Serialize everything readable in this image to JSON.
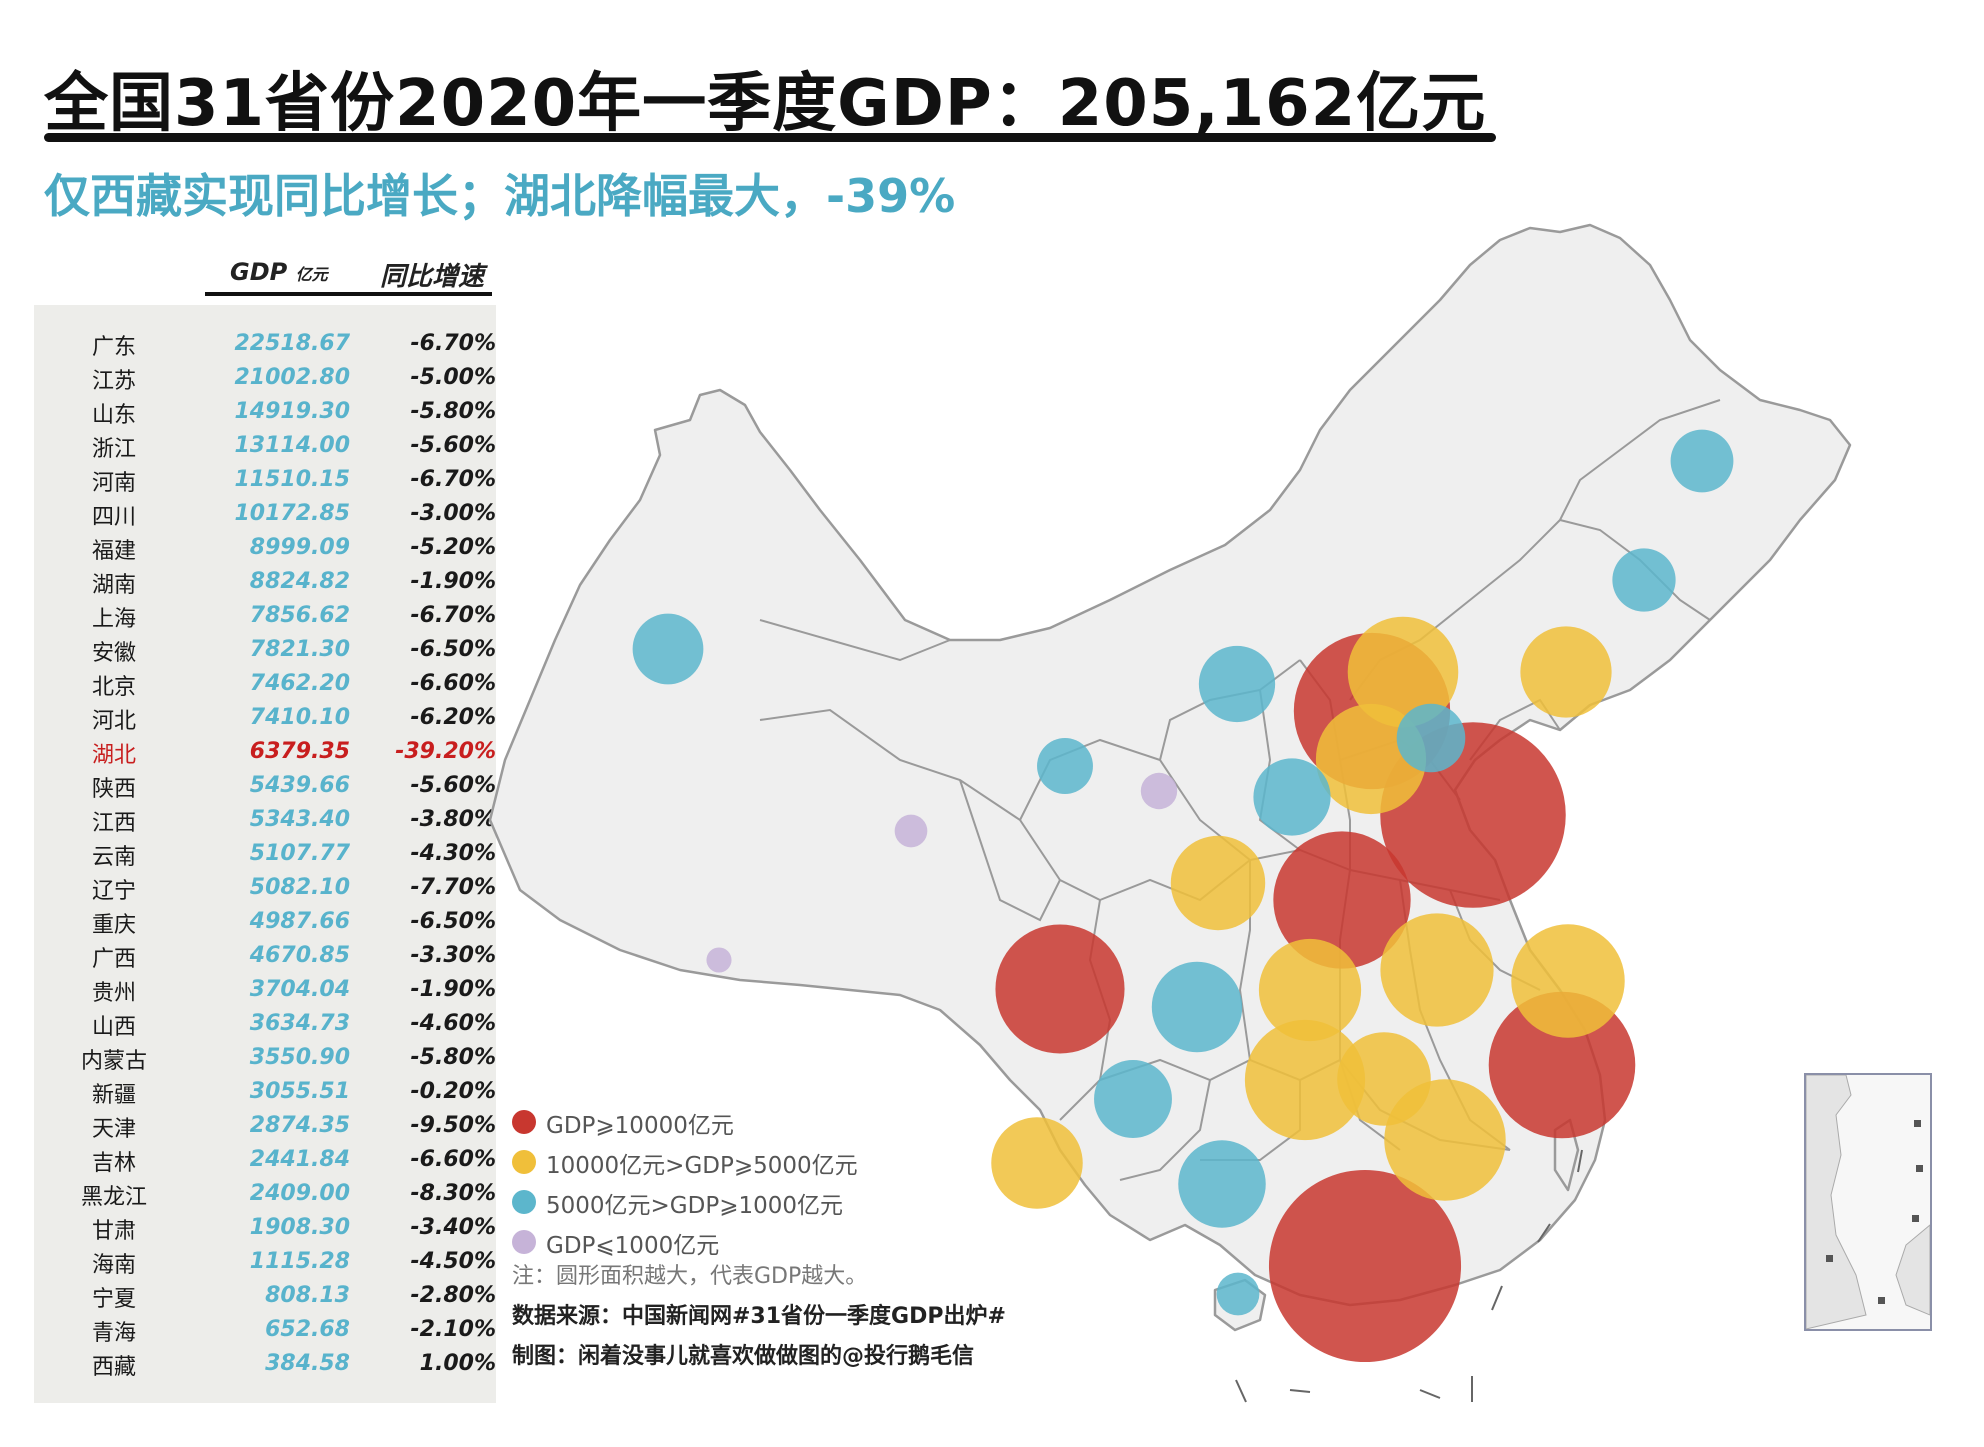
{
  "title": "全国31省份2020年一季度GDP：205,162亿元",
  "subtitle": "仅西藏实现同比增长；湖北降幅最大，-39%",
  "table": {
    "header_gdp": "GDP",
    "header_gdp_unit": "亿元",
    "header_growth": "同比增速",
    "rows": [
      {
        "name": "广东",
        "gdp": "22518.67",
        "growth": "-6.70%"
      },
      {
        "name": "江苏",
        "gdp": "21002.80",
        "growth": "-5.00%"
      },
      {
        "name": "山东",
        "gdp": "14919.30",
        "growth": "-5.80%"
      },
      {
        "name": "浙江",
        "gdp": "13114.00",
        "growth": "-5.60%"
      },
      {
        "name": "河南",
        "gdp": "11510.15",
        "growth": "-6.70%"
      },
      {
        "name": "四川",
        "gdp": "10172.85",
        "growth": "-3.00%"
      },
      {
        "name": "福建",
        "gdp": "8999.09",
        "growth": "-5.20%"
      },
      {
        "name": "湖南",
        "gdp": "8824.82",
        "growth": "-1.90%"
      },
      {
        "name": "上海",
        "gdp": "7856.62",
        "growth": "-6.70%"
      },
      {
        "name": "安徽",
        "gdp": "7821.30",
        "growth": "-6.50%"
      },
      {
        "name": "北京",
        "gdp": "7462.20",
        "growth": "-6.60%"
      },
      {
        "name": "河北",
        "gdp": "7410.10",
        "growth": "-6.20%"
      },
      {
        "name": "湖北",
        "gdp": "6379.35",
        "growth": "-39.20%",
        "highlight": true
      },
      {
        "name": "陕西",
        "gdp": "5439.66",
        "growth": "-5.60%"
      },
      {
        "name": "江西",
        "gdp": "5343.40",
        "growth": "-3.80%"
      },
      {
        "name": "云南",
        "gdp": "5107.77",
        "growth": "-4.30%"
      },
      {
        "name": "辽宁",
        "gdp": "5082.10",
        "growth": "-7.70%"
      },
      {
        "name": "重庆",
        "gdp": "4987.66",
        "growth": "-6.50%"
      },
      {
        "name": "广西",
        "gdp": "4670.85",
        "growth": "-3.30%"
      },
      {
        "name": "贵州",
        "gdp": "3704.04",
        "growth": "-1.90%"
      },
      {
        "name": "山西",
        "gdp": "3634.73",
        "growth": "-4.60%"
      },
      {
        "name": "内蒙古",
        "gdp": "3550.90",
        "growth": "-5.80%"
      },
      {
        "name": "新疆",
        "gdp": "3055.51",
        "growth": "-0.20%"
      },
      {
        "name": "天津",
        "gdp": "2874.35",
        "growth": "-9.50%"
      },
      {
        "name": "吉林",
        "gdp": "2441.84",
        "growth": "-6.60%"
      },
      {
        "name": "黑龙江",
        "gdp": "2409.00",
        "growth": "-8.30%"
      },
      {
        "name": "甘肃",
        "gdp": "1908.30",
        "growth": "-3.40%"
      },
      {
        "name": "海南",
        "gdp": "1115.28",
        "growth": "-4.50%"
      },
      {
        "name": "宁夏",
        "gdp": "808.13",
        "growth": "-2.80%"
      },
      {
        "name": "青海",
        "gdp": "652.68",
        "growth": "-2.10%"
      },
      {
        "name": "西藏",
        "gdp": "384.58",
        "growth": "1.00%"
      }
    ]
  },
  "legend": [
    {
      "label": "GDP⩾10000亿元",
      "color": "#c8372f"
    },
    {
      "label": "10000亿元>GDP⩾5000亿元",
      "color": "#f0bf3a"
    },
    {
      "label": "5000亿元>GDP⩾1000亿元",
      "color": "#5cb6cc"
    },
    {
      "label": "GDP⩽1000亿元",
      "color": "#c6b3d8"
    }
  ],
  "notes": {
    "area_note": "注：圆形面积越大，代表GDP越大。",
    "source": "数据来源：中国新闻网#31省份一季度GDP出炉#",
    "author": "制图：闲着没事儿就喜欢做做图的@投行鹅毛信"
  },
  "colors": {
    "tier1": "#c8372f",
    "tier2": "#f0bf3a",
    "tier3": "#5cb6cc",
    "tier4": "#c6b3d8",
    "accent_subtitle": "#4aa9c3",
    "highlight": "#c81e1e"
  }
}
